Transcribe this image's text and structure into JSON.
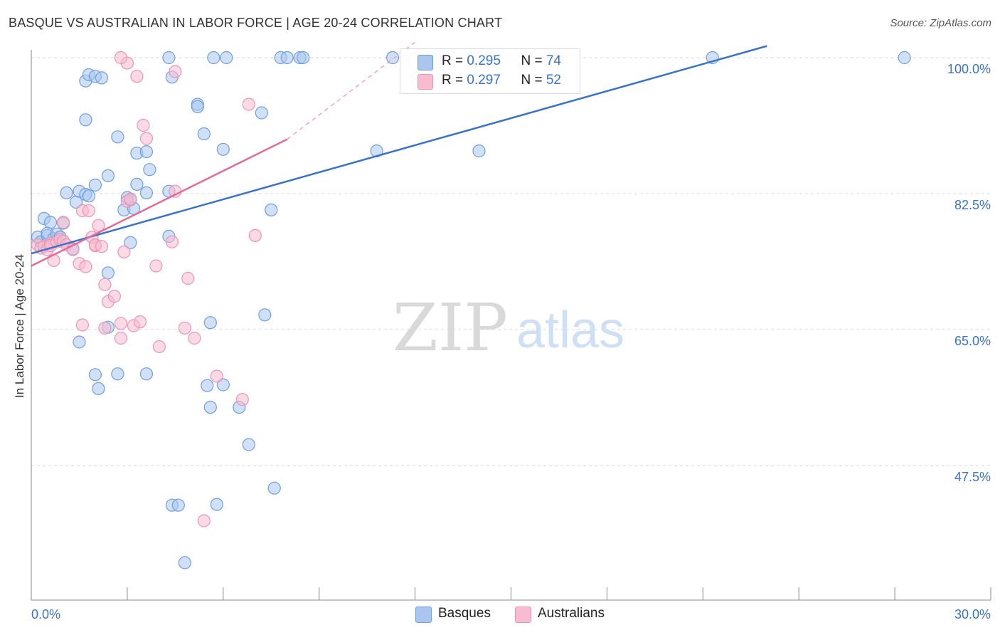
{
  "title": "BASQUE VS AUSTRALIAN IN LABOR FORCE | AGE 20-24 CORRELATION CHART",
  "source": "Source: ZipAtlas.com",
  "watermark": {
    "zip": "ZIP",
    "atlas": "atlas"
  },
  "colors": {
    "blue": "#3b73c4",
    "blue_fill": "#aac6ee",
    "blue_stroke": "#6f9fdc",
    "pink": "#e06d98",
    "pink_fill": "#f7bcd0",
    "pink_stroke": "#ec94b4",
    "grid": "#d9d9d9",
    "axis": "#888888"
  },
  "legend": {
    "rows": [
      {
        "r_label": "R = ",
        "r_value": "0.295",
        "n_label": "N = ",
        "n_value": "74"
      },
      {
        "r_label": "R = ",
        "r_value": "0.297",
        "n_label": "N = ",
        "n_value": "52"
      }
    ]
  },
  "bottom_legend": [
    "Basques",
    "Australians"
  ],
  "chart_data": {
    "type": "scatter",
    "title": "BASQUE VS AUSTRALIAN IN LABOR FORCE | AGE 20-24 CORRELATION CHART",
    "xlabel": "",
    "ylabel": "In Labor Force | Age 20-24",
    "xlim": [
      0,
      30
    ],
    "ylim": [
      32,
      102
    ],
    "x_tick_labels": [
      "0.0%",
      "30.0%"
    ],
    "y_ticks": [
      47.5,
      65.0,
      82.5,
      100.0
    ],
    "y_tick_labels": [
      "47.5%",
      "65.0%",
      "82.5%",
      "100.0%"
    ],
    "grid": true,
    "series": [
      {
        "name": "Basques",
        "R": 0.295,
        "N": 74,
        "trend": {
          "x": [
            0.0,
            23.0
          ],
          "y": [
            74.8,
            101.5
          ]
        },
        "points": [
          [
            0.2,
            76.9
          ],
          [
            0.3,
            76.3
          ],
          [
            0.5,
            77.1
          ],
          [
            0.4,
            79.3
          ],
          [
            0.6,
            78.8
          ],
          [
            0.5,
            77.4
          ],
          [
            0.7,
            76.7
          ],
          [
            0.8,
            77.3
          ],
          [
            0.9,
            76.9
          ],
          [
            1.0,
            78.7
          ],
          [
            1.1,
            82.6
          ],
          [
            1.3,
            75.4
          ],
          [
            1.4,
            81.4
          ],
          [
            1.5,
            82.8
          ],
          [
            1.7,
            82.4
          ],
          [
            1.8,
            82.2
          ],
          [
            2.0,
            83.6
          ],
          [
            1.7,
            92.0
          ],
          [
            1.7,
            97.0
          ],
          [
            2.0,
            59.2
          ],
          [
            1.5,
            63.4
          ],
          [
            2.1,
            57.4
          ],
          [
            2.4,
            65.3
          ],
          [
            2.4,
            72.3
          ],
          [
            1.8,
            97.8
          ],
          [
            2.0,
            97.6
          ],
          [
            2.4,
            84.8
          ],
          [
            2.9,
            80.4
          ],
          [
            2.2,
            97.4
          ],
          [
            2.7,
            89.8
          ],
          [
            3.0,
            82.0
          ],
          [
            3.1,
            81.7
          ],
          [
            3.2,
            80.6
          ],
          [
            2.7,
            59.3
          ],
          [
            3.1,
            76.2
          ],
          [
            3.3,
            87.7
          ],
          [
            3.6,
            87.9
          ],
          [
            3.7,
            85.6
          ],
          [
            3.3,
            83.7
          ],
          [
            3.6,
            82.6
          ],
          [
            3.6,
            59.3
          ],
          [
            4.3,
            82.8
          ],
          [
            4.3,
            77.0
          ],
          [
            4.4,
            97.5
          ],
          [
            4.4,
            42.4
          ],
          [
            4.6,
            42.4
          ],
          [
            4.8,
            35.0
          ],
          [
            5.2,
            94.0
          ],
          [
            5.2,
            93.7
          ],
          [
            5.4,
            90.2
          ],
          [
            5.6,
            55.0
          ],
          [
            5.5,
            57.8
          ],
          [
            6.0,
            88.2
          ],
          [
            6.0,
            57.9
          ],
          [
            5.6,
            65.9
          ],
          [
            5.8,
            42.5
          ],
          [
            6.5,
            55.0
          ],
          [
            6.8,
            50.2
          ],
          [
            7.2,
            92.9
          ],
          [
            7.3,
            66.9
          ],
          [
            7.5,
            80.4
          ],
          [
            7.6,
            44.6
          ],
          [
            4.3,
            100.0
          ],
          [
            5.7,
            100.0
          ],
          [
            6.1,
            100.0
          ],
          [
            7.8,
            100.0
          ],
          [
            8.0,
            100.0
          ],
          [
            8.4,
            100.0
          ],
          [
            8.5,
            100.0
          ],
          [
            11.3,
            100.0
          ],
          [
            10.8,
            88.0
          ],
          [
            14.0,
            88.0
          ],
          [
            21.3,
            100.0
          ],
          [
            27.3,
            100.0
          ]
        ]
      },
      {
        "name": "Australians",
        "R": 0.297,
        "N": 52,
        "trend": {
          "x": [
            0.0,
            8.0
          ],
          "y": [
            73.2,
            89.5
          ]
        },
        "trend_dashed": {
          "x": [
            8.0,
            12.0
          ],
          "y": [
            89.5,
            102.0
          ]
        },
        "points": [
          [
            0.2,
            75.9
          ],
          [
            0.3,
            75.5
          ],
          [
            0.4,
            75.7
          ],
          [
            0.5,
            75.3
          ],
          [
            0.6,
            76.1
          ],
          [
            0.6,
            75.8
          ],
          [
            0.7,
            73.9
          ],
          [
            0.8,
            76.3
          ],
          [
            0.9,
            76.6
          ],
          [
            1.0,
            76.4
          ],
          [
            1.0,
            78.8
          ],
          [
            1.1,
            75.9
          ],
          [
            1.3,
            75.3
          ],
          [
            1.5,
            73.5
          ],
          [
            1.6,
            80.3
          ],
          [
            1.7,
            73.1
          ],
          [
            1.6,
            65.6
          ],
          [
            2.0,
            75.8
          ],
          [
            1.8,
            80.3
          ],
          [
            2.1,
            78.4
          ],
          [
            1.9,
            76.9
          ],
          [
            2.0,
            75.9
          ],
          [
            2.2,
            75.7
          ],
          [
            2.3,
            70.8
          ],
          [
            2.3,
            65.2
          ],
          [
            2.4,
            68.6
          ],
          [
            2.6,
            69.3
          ],
          [
            2.8,
            65.8
          ],
          [
            2.9,
            75.0
          ],
          [
            3.0,
            81.5
          ],
          [
            2.8,
            63.9
          ],
          [
            3.1,
            81.8
          ],
          [
            3.0,
            99.3
          ],
          [
            3.3,
            97.6
          ],
          [
            3.5,
            91.3
          ],
          [
            3.6,
            89.6
          ],
          [
            3.2,
            65.5
          ],
          [
            3.4,
            66.0
          ],
          [
            3.9,
            73.2
          ],
          [
            4.0,
            62.8
          ],
          [
            4.4,
            76.3
          ],
          [
            4.5,
            98.2
          ],
          [
            4.5,
            82.8
          ],
          [
            4.8,
            65.2
          ],
          [
            4.9,
            71.6
          ],
          [
            5.1,
            63.9
          ],
          [
            5.4,
            40.4
          ],
          [
            5.8,
            59.0
          ],
          [
            6.8,
            94.0
          ],
          [
            6.6,
            56.0
          ],
          [
            7.0,
            77.1
          ],
          [
            2.8,
            100.0
          ]
        ]
      }
    ]
  }
}
